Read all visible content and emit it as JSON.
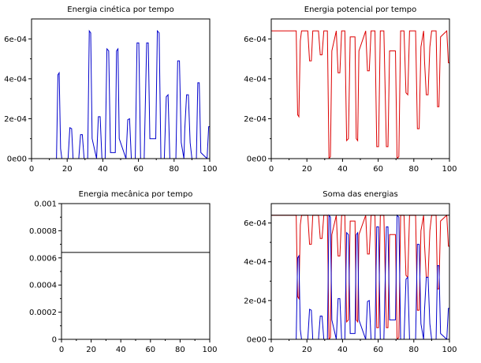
{
  "figure": {
    "background": "#ffffff",
    "colors": {
      "kinetic": "#0000cc",
      "potential": "#dd0000",
      "mechanical": "#000000",
      "axes": "#000000"
    }
  },
  "chart_data": [
    {
      "type": "line",
      "title": "Energia cinética por tempo",
      "xlabel": "",
      "ylabel": "",
      "xlim": [
        0,
        100
      ],
      "ylim": [
        0,
        0.0007
      ],
      "xticks": [
        "0",
        "20",
        "40",
        "60",
        "80",
        "100"
      ],
      "yticks": [
        "0e00",
        "2e-04",
        "4e-04",
        "6e-04"
      ],
      "series": [
        {
          "color": "#0000cc",
          "x": [
            14,
            14.8,
            15.5,
            16.3,
            17,
            20.5,
            21.5,
            22.5,
            23.3,
            26.5,
            27.5,
            28.5,
            29.5,
            31.5,
            32.4,
            33.2,
            34,
            36.5,
            37.5,
            38.5,
            39.5,
            41.3,
            42.3,
            43.3,
            44.3,
            47,
            47.7,
            48.5,
            49.2,
            53,
            54,
            55,
            56,
            58.2,
            59.2,
            60.2,
            61.2,
            63.2,
            64.6,
            65.5,
            66.4,
            69.7,
            70.6,
            71.6,
            72.6,
            74.5,
            75.6,
            76.6,
            77.6,
            81,
            82,
            83,
            84,
            85.5,
            86,
            87,
            88,
            89,
            90,
            92.5,
            93.3,
            94.1,
            95,
            98.5,
            99.4,
            100
          ],
          "y": [
            0,
            0.00042,
            0.00043,
            5e-05,
            0,
            0,
            0.000155,
            0.00015,
            0,
            0,
            0.00012,
            0.00012,
            0,
            0,
            0.00064,
            0.00063,
            0.0001,
            0,
            0.00021,
            0.00021,
            0,
            0,
            0.00055,
            0.00054,
            3e-05,
            3e-05,
            0.00054,
            0.00055,
            0.0001,
            0,
            0.000195,
            0.0002,
            0,
            0,
            0.00058,
            0.00058,
            0,
            0,
            0.00058,
            0.00058,
            0.0001,
            0.0001,
            0.00064,
            0.00063,
            0,
            0,
            0.00031,
            0.00032,
            0,
            0,
            0.00049,
            0.00049,
            8e-05,
            0,
            0.00015,
            0.00032,
            0.00032,
            8e-05,
            0,
            0,
            0.00038,
            0.00038,
            3e-05,
            0,
            0.00016,
            0.00016
          ]
        }
      ]
    },
    {
      "type": "line",
      "title": "Energia potencial por tempo",
      "xlabel": "",
      "ylabel": "",
      "xlim": [
        0,
        100
      ],
      "ylim": [
        0,
        0.0007
      ],
      "xticks": [
        "0",
        "20",
        "40",
        "60",
        "80",
        "100"
      ],
      "yticks": [
        "0e00",
        "2e-04",
        "4e-04",
        "6e-04"
      ],
      "series": [
        {
          "color": "#dd0000",
          "x": [
            0,
            14,
            14.8,
            15.5,
            16.3,
            17,
            20.5,
            21.5,
            22.5,
            23.3,
            26.5,
            27.5,
            28.5,
            29.5,
            31.5,
            32.4,
            33.2,
            34,
            36.5,
            37.5,
            38.5,
            39.5,
            41.3,
            42.3,
            43.3,
            44.3,
            47,
            47.7,
            48.5,
            49.2,
            53,
            54,
            55,
            56,
            58.2,
            59.2,
            60.2,
            61.2,
            63.2,
            64.6,
            65.5,
            66.4,
            69.7,
            70.6,
            71.6,
            72.6,
            74.5,
            75.6,
            76.6,
            77.6,
            81,
            82,
            83,
            84,
            85.5,
            86,
            87,
            88,
            89,
            90,
            92.5,
            93.3,
            94.1,
            95,
            98.5,
            99.4,
            100
          ],
          "y": [
            0.00064,
            0.00064,
            0.00022,
            0.00021,
            0.00059,
            0.00064,
            0.00064,
            0.00049,
            0.00049,
            0.00064,
            0.00064,
            0.00052,
            0.00052,
            0.00064,
            0.00064,
            0,
            1e-05,
            0.00054,
            0.00064,
            0.00043,
            0.00043,
            0.00064,
            0.00064,
            9e-05,
            0.0001,
            0.00061,
            0.00061,
            0.0001,
            9e-05,
            0.00054,
            0.00064,
            0.00044,
            0.00044,
            0.00064,
            0.00064,
            6e-05,
            6e-05,
            0.00064,
            0.00064,
            6e-05,
            6e-05,
            0.00054,
            0.00054,
            0,
            1e-05,
            0.00064,
            0.00064,
            0.00033,
            0.00032,
            0.00064,
            0.00064,
            0.00015,
            0.00015,
            0.00056,
            0.00064,
            0.00049,
            0.00032,
            0.00032,
            0.00056,
            0.00064,
            0.00064,
            0.00026,
            0.00026,
            0.00061,
            0.00064,
            0.00048,
            0.00048
          ]
        }
      ]
    },
    {
      "type": "line",
      "title": "Energia mecânica por tempo",
      "xlabel": "",
      "ylabel": "",
      "xlim": [
        0,
        100
      ],
      "ylim": [
        0,
        0.001
      ],
      "xticks": [
        "0",
        "20",
        "40",
        "60",
        "80",
        "100"
      ],
      "yticks": [
        "0",
        "0.0002",
        "0.0004",
        "0.0006",
        "0.0008",
        "0.001"
      ],
      "series": [
        {
          "color": "#000000",
          "x": [
            0,
            100
          ],
          "y": [
            0.00064,
            0.00064
          ]
        }
      ]
    },
    {
      "type": "line",
      "title": "Soma das energias",
      "xlabel": "",
      "ylabel": "",
      "xlim": [
        0,
        100
      ],
      "ylim": [
        0,
        0.0007
      ],
      "xticks": [
        "0",
        "20",
        "40",
        "60",
        "80",
        "100"
      ],
      "yticks": [
        "0e00",
        "2e-04",
        "4e-04",
        "6e-04"
      ],
      "series": [
        {
          "color": "#dd0000",
          "x": [
            0,
            14,
            14.8,
            15.5,
            16.3,
            17,
            20.5,
            21.5,
            22.5,
            23.3,
            26.5,
            27.5,
            28.5,
            29.5,
            31.5,
            32.4,
            33.2,
            34,
            36.5,
            37.5,
            38.5,
            39.5,
            41.3,
            42.3,
            43.3,
            44.3,
            47,
            47.7,
            48.5,
            49.2,
            53,
            54,
            55,
            56,
            58.2,
            59.2,
            60.2,
            61.2,
            63.2,
            64.6,
            65.5,
            66.4,
            69.7,
            70.6,
            71.6,
            72.6,
            74.5,
            75.6,
            76.6,
            77.6,
            81,
            82,
            83,
            84,
            85.5,
            86,
            87,
            88,
            89,
            90,
            92.5,
            93.3,
            94.1,
            95,
            98.5,
            99.4,
            100
          ],
          "y": [
            0.00064,
            0.00064,
            0.00022,
            0.00021,
            0.00059,
            0.00064,
            0.00064,
            0.00049,
            0.00049,
            0.00064,
            0.00064,
            0.00052,
            0.00052,
            0.00064,
            0.00064,
            0,
            1e-05,
            0.00054,
            0.00064,
            0.00043,
            0.00043,
            0.00064,
            0.00064,
            9e-05,
            0.0001,
            0.00061,
            0.00061,
            0.0001,
            9e-05,
            0.00054,
            0.00064,
            0.00044,
            0.00044,
            0.00064,
            0.00064,
            6e-05,
            6e-05,
            0.00064,
            0.00064,
            6e-05,
            6e-05,
            0.00054,
            0.00054,
            0,
            1e-05,
            0.00064,
            0.00064,
            0.00033,
            0.00032,
            0.00064,
            0.00064,
            0.00015,
            0.00015,
            0.00056,
            0.00064,
            0.00049,
            0.00032,
            0.00032,
            0.00056,
            0.00064,
            0.00064,
            0.00026,
            0.00026,
            0.00061,
            0.00064,
            0.00048,
            0.00048
          ]
        },
        {
          "color": "#0000cc",
          "x": [
            14,
            14.8,
            15.5,
            16.3,
            17,
            20.5,
            21.5,
            22.5,
            23.3,
            26.5,
            27.5,
            28.5,
            29.5,
            31.5,
            32.4,
            33.2,
            34,
            36.5,
            37.5,
            38.5,
            39.5,
            41.3,
            42.3,
            43.3,
            44.3,
            47,
            47.7,
            48.5,
            49.2,
            53,
            54,
            55,
            56,
            58.2,
            59.2,
            60.2,
            61.2,
            63.2,
            64.6,
            65.5,
            66.4,
            69.7,
            70.6,
            71.6,
            72.6,
            74.5,
            75.6,
            76.6,
            77.6,
            81,
            82,
            83,
            84,
            85.5,
            86,
            87,
            88,
            89,
            90,
            92.5,
            93.3,
            94.1,
            95,
            98.5,
            99.4,
            100
          ],
          "y": [
            0,
            0.00042,
            0.00043,
            5e-05,
            0,
            0,
            0.000155,
            0.00015,
            0,
            0,
            0.00012,
            0.00012,
            0,
            0,
            0.00064,
            0.00063,
            0.0001,
            0,
            0.00021,
            0.00021,
            0,
            0,
            0.00055,
            0.00054,
            3e-05,
            3e-05,
            0.00054,
            0.00055,
            0.0001,
            0,
            0.000195,
            0.0002,
            0,
            0,
            0.00058,
            0.00058,
            0,
            0,
            0.00058,
            0.00058,
            0.0001,
            0.0001,
            0.00064,
            0.00063,
            0,
            0,
            0.00031,
            0.00032,
            0,
            0,
            0.00049,
            0.00049,
            8e-05,
            0,
            0.00015,
            0.00032,
            0.00032,
            8e-05,
            0,
            0,
            0.00038,
            0.00038,
            3e-05,
            0,
            0.00016,
            0.00016
          ]
        },
        {
          "color": "#000000",
          "x": [
            0,
            100
          ],
          "y": [
            0.00064,
            0.00064
          ]
        }
      ]
    }
  ]
}
